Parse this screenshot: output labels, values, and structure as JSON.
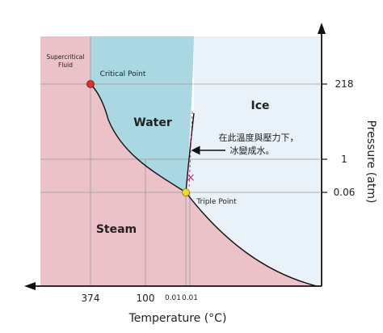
{
  "chart_data": {
    "type": "area",
    "title": "",
    "xlabel": "Temperature (°C)",
    "ylabel": "Pressure (atm)",
    "x_ticks": [
      "374",
      "100",
      "0.01",
      "0.01"
    ],
    "y_ticks": [
      "218",
      "1",
      "0.06"
    ],
    "regions": [
      {
        "name": "Supercritical Fluid",
        "color": "#ecc2c9"
      },
      {
        "name": "Water",
        "color": "#a9d7e2"
      },
      {
        "name": "Ice",
        "color": "#e8f2f8"
      },
      {
        "name": "Steam",
        "color": "#ecc2c9"
      }
    ],
    "points": [
      {
        "name": "Critical Point",
        "temperature": 374,
        "pressure": 218,
        "color": "#d9322d"
      },
      {
        "name": "Triple Point",
        "temperature": 0.01,
        "pressure": 0.06,
        "color": "#eddc2b"
      }
    ],
    "annotation": {
      "text_line1": "在此溫度與壓力下，",
      "text_line2": "冰變成水。",
      "marker": "×",
      "marker_color": "#c0397a"
    },
    "mirrored": true
  }
}
